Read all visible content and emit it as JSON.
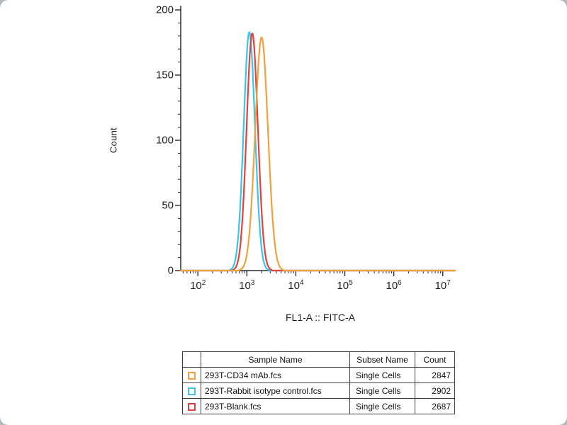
{
  "chart_data": {
    "type": "line",
    "title": "",
    "xlabel": "FL1-A :: FITC-A",
    "ylabel": "Count",
    "x_scale": "log",
    "x_range_log10": [
      1.65,
      7.25
    ],
    "x_ticks_exponents": [
      2,
      3,
      4,
      5,
      6,
      7
    ],
    "ylim": [
      0,
      200
    ],
    "y_ticks": [
      0,
      50,
      100,
      150,
      200
    ],
    "grid": "off",
    "legend_position": "bottom-table",
    "series": [
      {
        "name": "293T-Rabbit isotype control.fcs",
        "color": "#38c5f0",
        "peak_log10x": 3.05,
        "peak_y": 183,
        "sigma_log10": 0.115
      },
      {
        "name": "293T-Blank.fcs",
        "color": "#e2423e",
        "peak_log10x": 3.11,
        "peak_y": 182,
        "sigma_log10": 0.115
      },
      {
        "name": "293T-CD34 mAb.fcs",
        "color": "#f2a03d",
        "peak_log10x": 3.3,
        "peak_y": 179,
        "sigma_log10": 0.13
      }
    ]
  },
  "legend_table": {
    "headers": [
      "Sample Name",
      "Subset Name",
      "Count"
    ],
    "rows": [
      {
        "color": "#f2a03d",
        "sample": "293T-CD34 mAb.fcs",
        "subset": "Single Cells",
        "count": "2847"
      },
      {
        "color": "#38c5f0",
        "sample": "293T-Rabbit isotype control.fcs",
        "subset": "Single Cells",
        "count": "2902"
      },
      {
        "color": "#e2423e",
        "sample": "293T-Blank.fcs",
        "subset": "Single Cells",
        "count": "2687"
      }
    ]
  }
}
